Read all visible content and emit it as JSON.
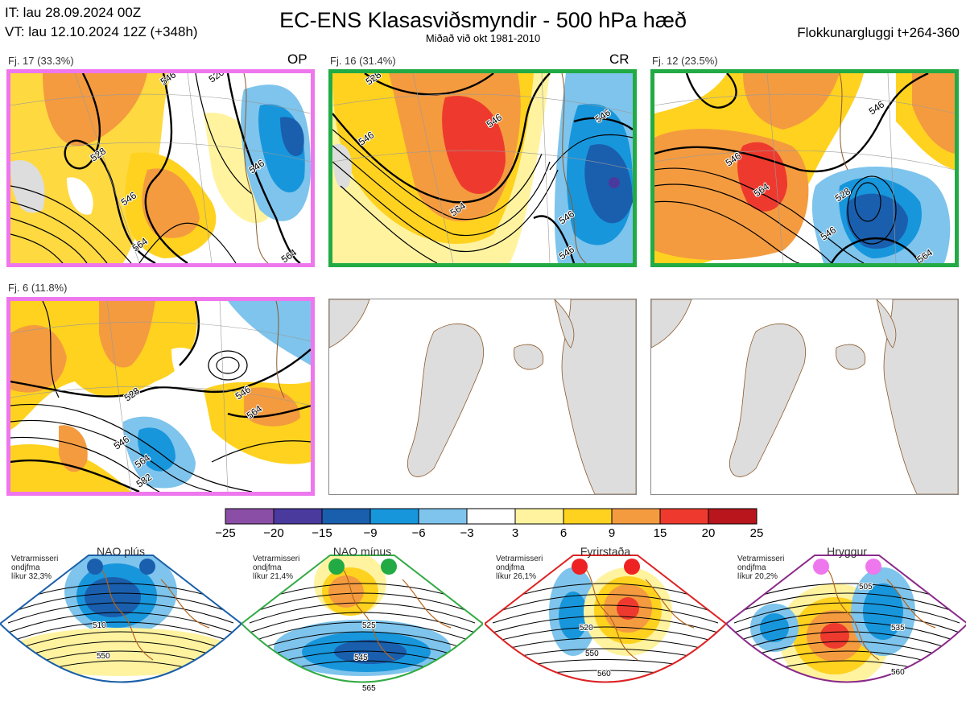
{
  "header": {
    "it_line": "IT: lau 28.09.2024 00Z",
    "vt_line": "VT: lau 12.10.2024 12Z  (+348h)",
    "title": "EC-ENS Klasasviðsmyndir - 500 hPa hæð",
    "subtitle": "Miðað við okt 1981-2010",
    "window": "Flokkunargluggi t+264-360"
  },
  "colors": {
    "magenta_frame": "#ee77ee",
    "green_frame": "#22aa44"
  },
  "panels": [
    {
      "label": "Fj. 17 (33.3%)",
      "tag": "OP",
      "frame": "magenta",
      "contours": [
        "528",
        "546",
        "546",
        "564",
        "564",
        "520",
        "546"
      ]
    },
    {
      "label": "Fj. 16 (31.4%)",
      "tag": "CR",
      "frame": "green",
      "contours": [
        "528",
        "546",
        "546",
        "564",
        "546",
        "546",
        "546"
      ]
    },
    {
      "label": "Fj. 12 (23.5%)",
      "tag": "",
      "frame": "green",
      "contours": [
        "546",
        "564",
        "546",
        "528",
        "546",
        "564"
      ]
    },
    {
      "label": "Fj. 6 (11.8%)",
      "tag": "",
      "frame": "magenta",
      "contours": [
        "528",
        "546",
        "546",
        "564",
        "564",
        "582"
      ]
    }
  ],
  "colorbar": {
    "ticks": [
      "−25",
      "−20",
      "−15",
      "−9",
      "−6",
      "−3",
      "3",
      "6",
      "9",
      "15",
      "20",
      "25"
    ],
    "colors": [
      "#8b4ea6",
      "#4a3a9e",
      "#1a5fae",
      "#1896dc",
      "#7ec4ec",
      "#ffffff",
      "#fff3a0",
      "#ffd21f",
      "#f49b40",
      "#ee3a2e",
      "#b8151c"
    ]
  },
  "regimes": [
    {
      "title": "NAO plús",
      "text": [
        "Vetrarmisseri",
        "ondjfma",
        "líkur 32,3%"
      ],
      "frame": "#1a5fa8",
      "dot": "#1a5fae",
      "contours": [
        "510",
        "550"
      ]
    },
    {
      "title": "NAO mínus",
      "text": [
        "Vetrarmisseri",
        "ondjfma",
        "líkur 21,4%"
      ],
      "frame": "#33aa44",
      "dot": "#22aa44",
      "contours": [
        "525",
        "545",
        "565"
      ]
    },
    {
      "title": "Fyrirstaða",
      "text": [
        "Vetrarmisseri",
        "ondjfma",
        "líkur 26,1%"
      ],
      "frame": "#dd2222",
      "dot": "#ee2222",
      "contours": [
        "520",
        "550",
        "560"
      ]
    },
    {
      "title": "Hryggur",
      "text": [
        "Vetrarmisseri",
        "ondjfma",
        "líkur 20,2%"
      ],
      "frame": "#8a2a8a",
      "dot": "#ee77ee",
      "contours": [
        "505",
        "535",
        "560"
      ]
    }
  ]
}
